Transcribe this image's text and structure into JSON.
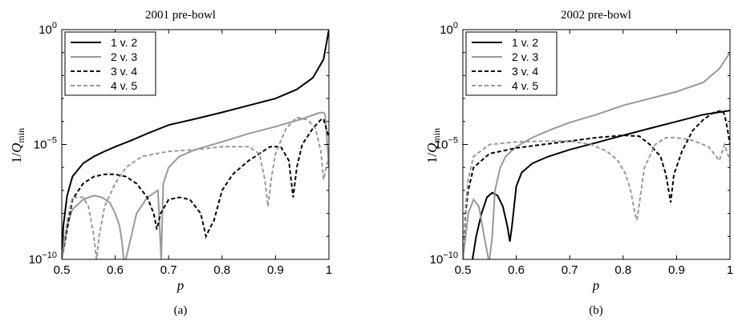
{
  "chart_data": [
    {
      "type": "line",
      "title": "2001 pre-bowl",
      "xlabel": "p",
      "ylabel_prefix": "1/",
      "ylabel_var": "Q",
      "ylabel_sub": "min",
      "caption": "(a)",
      "y_scale": "log",
      "xlim": [
        0.5,
        1
      ],
      "ylim": [
        1e-10,
        1
      ],
      "x_ticks": [
        {
          "value": 0.5,
          "label": "0.5"
        },
        {
          "value": 0.6,
          "label": "0.6"
        },
        {
          "value": 0.7,
          "label": "0.7"
        },
        {
          "value": 0.8,
          "label": "0.8"
        },
        {
          "value": 0.9,
          "label": "0.9"
        },
        {
          "value": 1.0,
          "label": "1"
        }
      ],
      "y_ticks": [
        {
          "value": 1e-10,
          "base": "10",
          "exp": "−10"
        },
        {
          "value": 1e-05,
          "base": "10",
          "exp": "−5"
        },
        {
          "value": 1,
          "base": "10",
          "exp": "0"
        }
      ],
      "legend_position": "top-left",
      "series": [
        {
          "name": "1 v. 2",
          "color": "#000000",
          "dash": "solid",
          "x": [
            0.5,
            0.503,
            0.51,
            0.52,
            0.54,
            0.56,
            0.58,
            0.6,
            0.63,
            0.66,
            0.7,
            0.75,
            0.8,
            0.85,
            0.9,
            0.94,
            0.97,
            0.99,
            1.0
          ],
          "y": [
            1e-10,
            3e-09,
            6e-08,
            4e-07,
            1.5e-06,
            3e-06,
            5e-06,
            8e-06,
            1.5e-05,
            3e-05,
            7e-05,
            0.00013,
            0.00025,
            0.0005,
            0.001,
            0.0025,
            0.008,
            0.05,
            1
          ]
        },
        {
          "name": "2 v. 3",
          "color": "#999999",
          "dash": "solid",
          "x": [
            0.5,
            0.51,
            0.52,
            0.54,
            0.56,
            0.575,
            0.59,
            0.6,
            0.608,
            0.613,
            0.616,
            0.62,
            0.64,
            0.66,
            0.68,
            0.686,
            0.69,
            0.7,
            0.72,
            0.75,
            0.8,
            0.85,
            0.9,
            0.95,
            0.98,
            0.99,
            0.993,
            0.997,
            1.0
          ],
          "y": [
            1e-10,
            3e-09,
            1.5e-08,
            4e-08,
            6e-08,
            5e-08,
            3e-08,
            1e-08,
            3e-09,
            5e-10,
            1e-10,
            1e-10,
            1e-08,
            5e-08,
            1e-07,
            1e-10,
            2e-07,
            1e-06,
            3e-06,
            6e-06,
            1.3e-05,
            3e-05,
            6e-05,
            0.00013,
            0.00023,
            0.00025,
            0.0002,
            1e-05,
            1e-06
          ]
        },
        {
          "name": "3 v. 4",
          "color": "#000000",
          "dash": "dashed",
          "x": [
            0.5,
            0.51,
            0.52,
            0.54,
            0.56,
            0.58,
            0.6,
            0.62,
            0.64,
            0.66,
            0.672,
            0.678,
            0.685,
            0.7,
            0.72,
            0.74,
            0.76,
            0.77,
            0.776,
            0.785,
            0.8,
            0.82,
            0.85,
            0.87,
            0.89,
            0.91,
            0.925,
            0.933,
            0.94,
            0.95,
            0.97,
            0.985,
            0.99,
            0.995,
            1.0
          ],
          "y": [
            1e-10,
            2e-09,
            4e-08,
            2e-07,
            4e-07,
            5e-07,
            5e-07,
            4e-07,
            2e-07,
            5e-08,
            1e-08,
            2e-09,
            1e-08,
            4e-08,
            5e-08,
            4e-08,
            1e-08,
            1e-09,
            2e-09,
            5e-09,
            1e-07,
            5e-07,
            2e-06,
            4e-06,
            8e-06,
            8e-06,
            2e-06,
            5e-08,
            1e-06,
            1e-05,
            5e-05,
            0.00012,
            0.00013,
            5e-05,
            2e-05
          ]
        },
        {
          "name": "4 v. 5",
          "color": "#999999",
          "dash": "dashed",
          "x": [
            0.5,
            0.51,
            0.52,
            0.54,
            0.55,
            0.56,
            0.565,
            0.57,
            0.58,
            0.6,
            0.62,
            0.65,
            0.7,
            0.75,
            0.8,
            0.85,
            0.87,
            0.88,
            0.886,
            0.892,
            0.9,
            0.92,
            0.94,
            0.96,
            0.975,
            0.985,
            0.99,
            0.995,
            1.0
          ],
          "y": [
            1e-10,
            5e-09,
            5e-08,
            5e-08,
            2e-08,
            1e-09,
            1e-10,
            1e-09,
            2e-08,
            2e-07,
            1e-06,
            3e-06,
            5e-06,
            6e-06,
            8e-06,
            8e-06,
            4e-06,
            3e-07,
            2e-08,
            3e-07,
            4e-06,
            5e-05,
            0.00015,
            0.00012,
            5e-05,
            5e-06,
            3e-07,
            1e-06,
            3e-06
          ]
        }
      ]
    },
    {
      "type": "line",
      "title": "2002 pre-bowl",
      "xlabel": "p",
      "ylabel_prefix": "1/",
      "ylabel_var": "Q",
      "ylabel_sub": "min",
      "caption": "(b)",
      "y_scale": "log",
      "xlim": [
        0.5,
        1
      ],
      "ylim": [
        1e-10,
        1
      ],
      "x_ticks": [
        {
          "value": 0.5,
          "label": "0.5"
        },
        {
          "value": 0.6,
          "label": "0.6"
        },
        {
          "value": 0.7,
          "label": "0.7"
        },
        {
          "value": 0.8,
          "label": "0.8"
        },
        {
          "value": 0.9,
          "label": "0.9"
        },
        {
          "value": 1.0,
          "label": "1"
        }
      ],
      "y_ticks": [
        {
          "value": 1e-10,
          "base": "10",
          "exp": "−10"
        },
        {
          "value": 1e-05,
          "base": "10",
          "exp": "−5"
        },
        {
          "value": 1,
          "base": "10",
          "exp": "0"
        }
      ],
      "legend_position": "top-left",
      "series": [
        {
          "name": "1 v. 2",
          "color": "#000000",
          "dash": "solid",
          "x": [
            0.518,
            0.525,
            0.535,
            0.545,
            0.555,
            0.565,
            0.575,
            0.583,
            0.588,
            0.592,
            0.6,
            0.61,
            0.63,
            0.66,
            0.7,
            0.75,
            0.8,
            0.85,
            0.9,
            0.95,
            1.0
          ],
          "y": [
            1e-10,
            1e-09,
            1e-08,
            5e-08,
            8e-08,
            6e-08,
            2e-08,
            3e-09,
            6e-10,
            3e-09,
            1.5e-07,
            6e-07,
            1.5e-06,
            3e-06,
            6e-06,
            1.2e-05,
            2.5e-05,
            5e-05,
            0.0001,
            0.0002,
            0.0003
          ]
        },
        {
          "name": "2 v. 3",
          "color": "#999999",
          "dash": "solid",
          "x": [
            0.5,
            0.51,
            0.52,
            0.53,
            0.54,
            0.548,
            0.55,
            0.555,
            0.56,
            0.57,
            0.58,
            0.6,
            0.63,
            0.66,
            0.7,
            0.75,
            0.8,
            0.85,
            0.9,
            0.95,
            0.98,
            1.0
          ],
          "y": [
            1e-10,
            1e-08,
            4e-08,
            2e-08,
            1e-09,
            1e-10,
            1e-10,
            1e-09,
            1e-07,
            1e-06,
            3e-06,
            8e-06,
            2e-05,
            4e-05,
            9e-05,
            0.0002,
            0.0005,
            0.001,
            0.002,
            0.005,
            0.02,
            0.1
          ]
        },
        {
          "name": "3 v. 4",
          "color": "#000000",
          "dash": "dashed",
          "x": [
            0.5,
            0.505,
            0.51,
            0.52,
            0.55,
            0.6,
            0.65,
            0.7,
            0.75,
            0.8,
            0.83,
            0.85,
            0.87,
            0.88,
            0.889,
            0.895,
            0.91,
            0.93,
            0.95,
            0.97,
            0.985,
            0.99,
            0.995,
            1.0
          ],
          "y": [
            1e-10,
            1e-08,
            1e-07,
            1e-06,
            4e-06,
            7e-06,
            1e-05,
            1.4e-05,
            2e-05,
            2.5e-05,
            2.3e-05,
            1e-05,
            3e-06,
            5e-07,
            3e-08,
            5e-07,
            5e-06,
            4e-05,
            0.00012,
            0.00025,
            0.0003,
            0.0002,
            5e-05,
            1e-05
          ]
        },
        {
          "name": "4 v. 5",
          "color": "#999999",
          "dash": "dashed",
          "x": [
            0.5,
            0.505,
            0.51,
            0.52,
            0.55,
            0.6,
            0.65,
            0.7,
            0.74,
            0.77,
            0.79,
            0.805,
            0.815,
            0.822,
            0.826,
            0.832,
            0.84,
            0.86,
            0.88,
            0.9,
            0.93,
            0.96,
            0.98,
            0.99,
            1.0
          ],
          "y": [
            1e-10,
            2e-08,
            3e-07,
            3e-06,
            1e-05,
            1.3e-05,
            1.4e-05,
            1.4e-05,
            1e-05,
            5e-06,
            2e-06,
            5e-07,
            8e-08,
            1e-08,
            5e-09,
            5e-08,
            1e-06,
            1e-05,
            2e-05,
            2e-05,
            1.5e-05,
            8e-06,
            2e-06,
            1e-05,
            2e-06
          ]
        }
      ]
    }
  ]
}
